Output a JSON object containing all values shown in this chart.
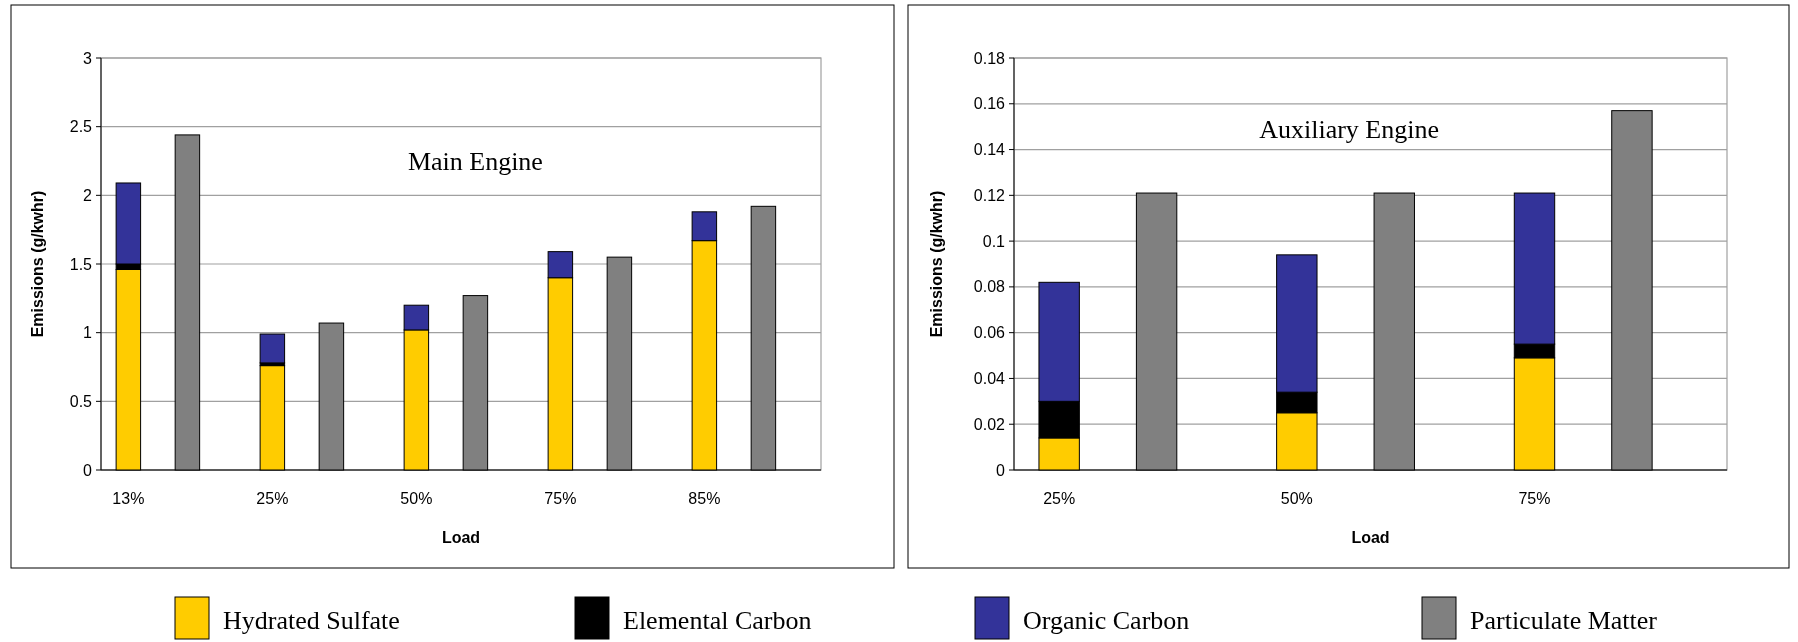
{
  "chart_data": [
    {
      "type": "bar",
      "stacked": true,
      "categories": [
        "13%",
        null,
        "25%",
        null,
        "50%",
        null,
        "75%",
        null,
        "85%",
        null
      ],
      "xlabel": "Load",
      "ylabel": "Emissions (g/kwhr)",
      "ylim": [
        0,
        3
      ],
      "yticks": [
        0,
        0.5,
        1,
        1.5,
        2,
        2.5,
        3
      ],
      "grid": "y",
      "legend": "bottom",
      "annotations": [
        "Main Engine"
      ],
      "series": [
        {
          "name": "Hydrated Sulfate",
          "color": "#ffcc00",
          "values": [
            1.46,
            null,
            0.76,
            null,
            1.02,
            null,
            1.4,
            null,
            1.67,
            null
          ]
        },
        {
          "name": "Elemental Carbon",
          "color": "#000000",
          "values": [
            0.04,
            null,
            0.02,
            null,
            null,
            null,
            null,
            null,
            null,
            null
          ]
        },
        {
          "name": "Organic Carbon",
          "color": "#333399",
          "values": [
            0.59,
            null,
            0.21,
            null,
            0.18,
            null,
            0.19,
            null,
            0.21,
            null
          ]
        },
        {
          "name": "Particulate Matter",
          "color": "#808080",
          "values": [
            null,
            2.44,
            null,
            1.07,
            null,
            1.27,
            null,
            1.55,
            null,
            1.92
          ]
        }
      ]
    },
    {
      "type": "bar",
      "stacked": true,
      "categories": [
        "25%",
        null,
        "50%",
        null,
        "75%",
        null
      ],
      "xlabel": "Load",
      "ylabel": "Emissions (g/kwhr)",
      "ylim": [
        0,
        0.18
      ],
      "yticks": [
        0,
        0.02,
        0.04,
        0.06,
        0.08,
        0.1,
        0.12,
        0.14,
        0.16,
        0.18
      ],
      "grid": "y",
      "annotations": [
        "Auxiliary Engine"
      ],
      "series": [
        {
          "color": "#ffcc00",
          "values": [
            0.014,
            null,
            0.025,
            null,
            0.049,
            null
          ]
        },
        {
          "color": "#000000",
          "values": [
            0.016,
            null,
            0.009,
            null,
            0.006,
            null
          ]
        },
        {
          "color": "#333399",
          "values": [
            0.052,
            null,
            0.06,
            null,
            0.066,
            null
          ]
        },
        {
          "color": "#808080",
          "values": [
            null,
            0.121,
            null,
            0.121,
            null,
            0.157
          ]
        }
      ]
    }
  ]
}
